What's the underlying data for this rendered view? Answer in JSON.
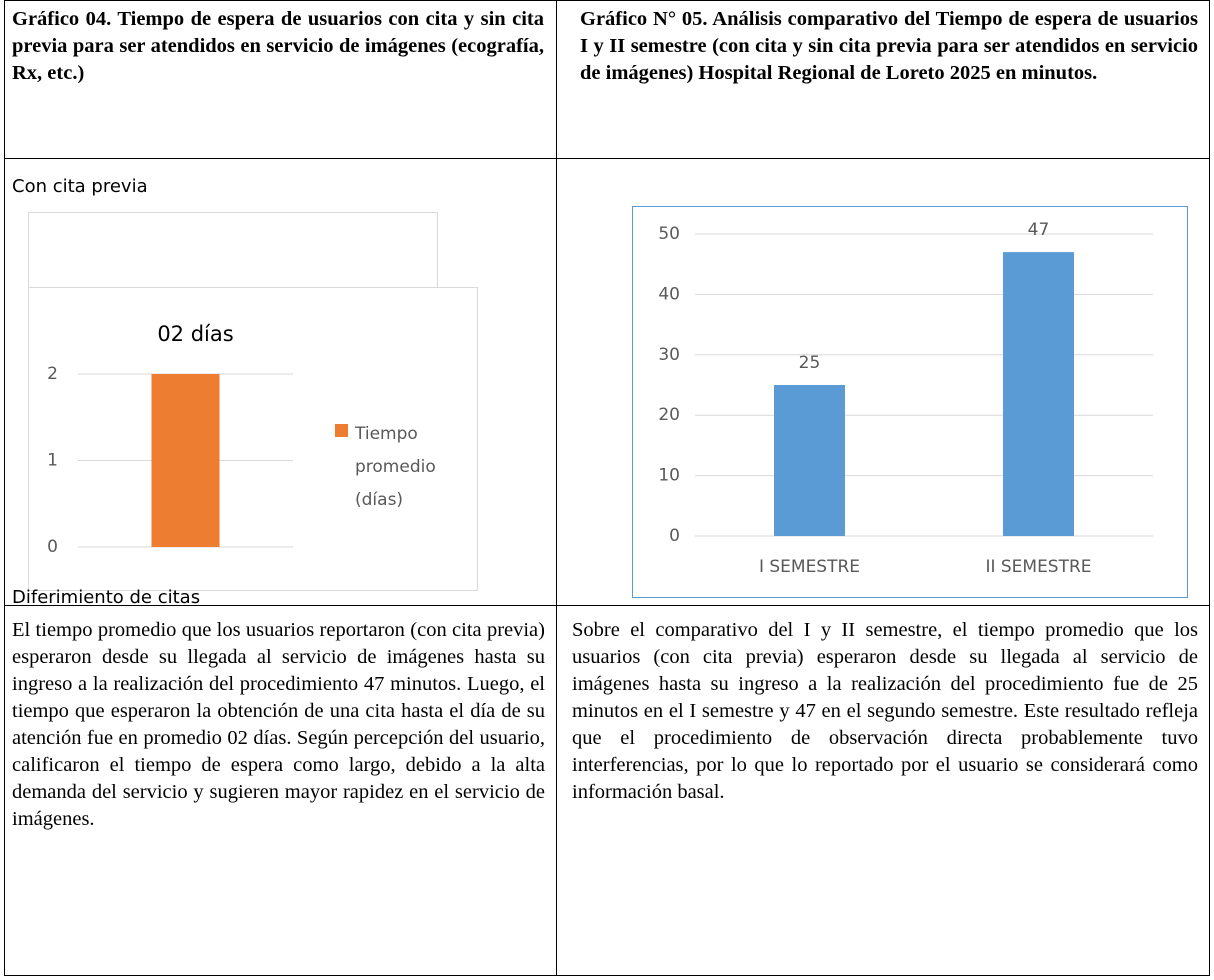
{
  "header": [
    "Gráfico 04. Tiempo de espera de usuarios con cita y sin cita previa para ser atendidos en servicio de imágenes (ecografía, Rx, etc.)",
    "Gráfico N° 05. Análisis comparativo del Tiempo de espera de usuarios I y II semestre (con cita y sin cita previa para ser atendidos en servicio de imágenes) Hospital Regional de Loreto 2025 en minutos."
  ],
  "left_caption_top": "Con cita previa",
  "left_caption_bottom": "Diferimiento de citas",
  "chart_data": [
    {
      "type": "bar",
      "title": "02 días",
      "categories": [
        null
      ],
      "series": [
        {
          "name": "Tiempo promedio (días)",
          "color": "#ed7d31",
          "values": [
            2
          ]
        }
      ],
      "ylim": [
        0,
        2
      ],
      "yticks": [
        0,
        1,
        2
      ],
      "grid": true,
      "legend": "right"
    },
    {
      "type": "bar",
      "categories": [
        "I SEMESTRE",
        "II SEMESTRE"
      ],
      "series": [
        {
          "name": null,
          "color": "#5b9bd5",
          "values": [
            25,
            47
          ]
        }
      ],
      "ylim": [
        0,
        50
      ],
      "yticks": [
        0,
        10,
        20,
        30,
        40,
        50
      ],
      "grid": true,
      "data_labels": true
    }
  ],
  "paragraphs": [
    "El tiempo promedio que los usuarios reportaron (con cita previa) esperaron desde su llegada al servicio de imágenes hasta su ingreso a la realización del procedimiento 47 minutos. Luego, el tiempo que esperaron la obtención de una cita hasta el día de su atención fue en promedio 02 días. Según percepción del usuario, calificaron el tiempo de espera como largo, debido a la alta demanda del servicio y sugieren mayor rapidez en el servicio de imágenes.",
    "Sobre el comparativo del I y II semestre, el tiempo promedio que los usuarios (con cita previa) esperaron desde su llegada al servicio de imágenes hasta su ingreso a la realización del procedimiento fue de 25 minutos en el I semestre y 47 en el segundo semestre. Este resultado refleja que el procedimiento de observación directa probablemente tuvo interferencias, por lo que lo reportado por el usuario se considerará  como información basal."
  ]
}
